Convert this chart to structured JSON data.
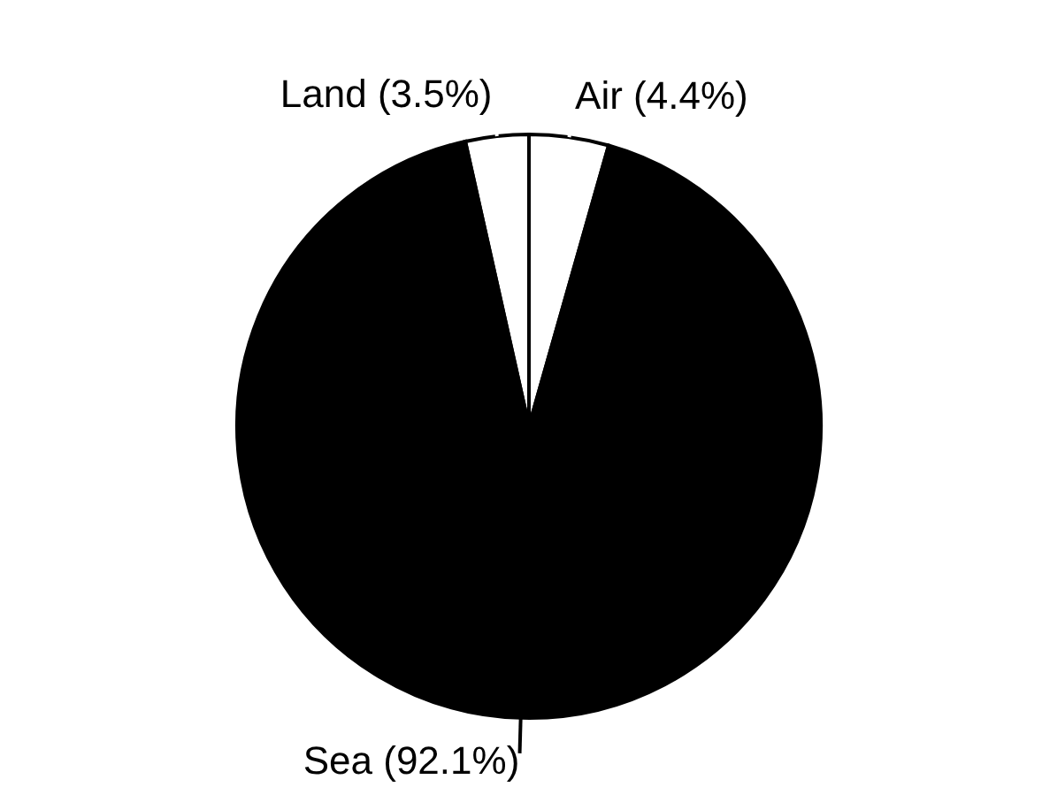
{
  "chart_data": {
    "type": "pie",
    "categories": [
      "Land",
      "Air",
      "Sea"
    ],
    "values": [
      3.5,
      4.4,
      92.1
    ],
    "colors": [
      "#ffffff",
      "#ffffff",
      "#000000"
    ],
    "value_labels": [
      "(3.5%)",
      "(4.4%)",
      "(92.1%)"
    ]
  }
}
